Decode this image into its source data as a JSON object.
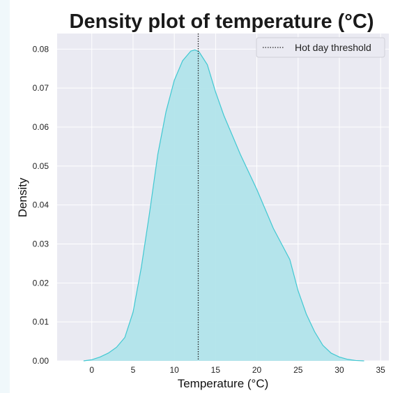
{
  "chart_data": {
    "type": "area",
    "title": "Density plot of temperature (°C)",
    "xlabel": "Temperature (°C)",
    "ylabel": "Density",
    "xlim": [
      -4.2,
      36
    ],
    "ylim": [
      0,
      0.084
    ],
    "xticks": [
      0,
      5,
      10,
      15,
      20,
      25,
      30,
      35
    ],
    "yticks": [
      0.0,
      0.01,
      0.02,
      0.03,
      0.04,
      0.05,
      0.06,
      0.07,
      0.08
    ],
    "ytick_labels": [
      "0.00",
      "0.01",
      "0.02",
      "0.03",
      "0.04",
      "0.05",
      "0.06",
      "0.07",
      "0.08"
    ],
    "grid": true,
    "legend_position": "top-right",
    "series": [
      {
        "x": [
          -1,
          0,
          1,
          2,
          3,
          4,
          5,
          6,
          7,
          8,
          9,
          10,
          11,
          12,
          12.5,
          13,
          14,
          15,
          16,
          17,
          18,
          19,
          20,
          21,
          22,
          23,
          24,
          25,
          26,
          27,
          28,
          29,
          30,
          31,
          32,
          33
        ],
        "y": [
          0.0,
          0.0003,
          0.001,
          0.002,
          0.0035,
          0.006,
          0.0125,
          0.024,
          0.038,
          0.053,
          0.064,
          0.072,
          0.077,
          0.0795,
          0.0798,
          0.0793,
          0.076,
          0.069,
          0.063,
          0.058,
          0.053,
          0.0485,
          0.044,
          0.039,
          0.034,
          0.03,
          0.026,
          0.018,
          0.012,
          0.0075,
          0.004,
          0.002,
          0.001,
          0.0004,
          0.0001,
          0.0
        ]
      }
    ],
    "reference_line": {
      "x": 12.9,
      "label": "Hot day threshold",
      "style": "dotted"
    },
    "colors": {
      "fill": "#b1e4ea",
      "line": "#40c8d2",
      "plot_bg": "#eaeaf2",
      "grid": "#ffffff",
      "threshold": "#222222"
    }
  }
}
